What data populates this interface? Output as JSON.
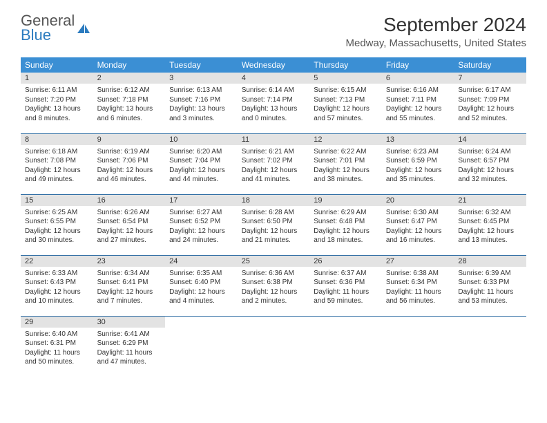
{
  "brand": {
    "name_part1": "General",
    "name_part2": "Blue",
    "icon_color": "#2b7bbf"
  },
  "title": "September 2024",
  "location": "Medway, Massachusetts, United States",
  "header_bg": "#3b8fd4",
  "daynum_bg": "#e3e3e3",
  "border_color": "#2e6da4",
  "weekdays": [
    "Sunday",
    "Monday",
    "Tuesday",
    "Wednesday",
    "Thursday",
    "Friday",
    "Saturday"
  ],
  "weeks": [
    [
      {
        "day": "1",
        "sunrise": "Sunrise: 6:11 AM",
        "sunset": "Sunset: 7:20 PM",
        "daylight": "Daylight: 13 hours and 8 minutes."
      },
      {
        "day": "2",
        "sunrise": "Sunrise: 6:12 AM",
        "sunset": "Sunset: 7:18 PM",
        "daylight": "Daylight: 13 hours and 6 minutes."
      },
      {
        "day": "3",
        "sunrise": "Sunrise: 6:13 AM",
        "sunset": "Sunset: 7:16 PM",
        "daylight": "Daylight: 13 hours and 3 minutes."
      },
      {
        "day": "4",
        "sunrise": "Sunrise: 6:14 AM",
        "sunset": "Sunset: 7:14 PM",
        "daylight": "Daylight: 13 hours and 0 minutes."
      },
      {
        "day": "5",
        "sunrise": "Sunrise: 6:15 AM",
        "sunset": "Sunset: 7:13 PM",
        "daylight": "Daylight: 12 hours and 57 minutes."
      },
      {
        "day": "6",
        "sunrise": "Sunrise: 6:16 AM",
        "sunset": "Sunset: 7:11 PM",
        "daylight": "Daylight: 12 hours and 55 minutes."
      },
      {
        "day": "7",
        "sunrise": "Sunrise: 6:17 AM",
        "sunset": "Sunset: 7:09 PM",
        "daylight": "Daylight: 12 hours and 52 minutes."
      }
    ],
    [
      {
        "day": "8",
        "sunrise": "Sunrise: 6:18 AM",
        "sunset": "Sunset: 7:08 PM",
        "daylight": "Daylight: 12 hours and 49 minutes."
      },
      {
        "day": "9",
        "sunrise": "Sunrise: 6:19 AM",
        "sunset": "Sunset: 7:06 PM",
        "daylight": "Daylight: 12 hours and 46 minutes."
      },
      {
        "day": "10",
        "sunrise": "Sunrise: 6:20 AM",
        "sunset": "Sunset: 7:04 PM",
        "daylight": "Daylight: 12 hours and 44 minutes."
      },
      {
        "day": "11",
        "sunrise": "Sunrise: 6:21 AM",
        "sunset": "Sunset: 7:02 PM",
        "daylight": "Daylight: 12 hours and 41 minutes."
      },
      {
        "day": "12",
        "sunrise": "Sunrise: 6:22 AM",
        "sunset": "Sunset: 7:01 PM",
        "daylight": "Daylight: 12 hours and 38 minutes."
      },
      {
        "day": "13",
        "sunrise": "Sunrise: 6:23 AM",
        "sunset": "Sunset: 6:59 PM",
        "daylight": "Daylight: 12 hours and 35 minutes."
      },
      {
        "day": "14",
        "sunrise": "Sunrise: 6:24 AM",
        "sunset": "Sunset: 6:57 PM",
        "daylight": "Daylight: 12 hours and 32 minutes."
      }
    ],
    [
      {
        "day": "15",
        "sunrise": "Sunrise: 6:25 AM",
        "sunset": "Sunset: 6:55 PM",
        "daylight": "Daylight: 12 hours and 30 minutes."
      },
      {
        "day": "16",
        "sunrise": "Sunrise: 6:26 AM",
        "sunset": "Sunset: 6:54 PM",
        "daylight": "Daylight: 12 hours and 27 minutes."
      },
      {
        "day": "17",
        "sunrise": "Sunrise: 6:27 AM",
        "sunset": "Sunset: 6:52 PM",
        "daylight": "Daylight: 12 hours and 24 minutes."
      },
      {
        "day": "18",
        "sunrise": "Sunrise: 6:28 AM",
        "sunset": "Sunset: 6:50 PM",
        "daylight": "Daylight: 12 hours and 21 minutes."
      },
      {
        "day": "19",
        "sunrise": "Sunrise: 6:29 AM",
        "sunset": "Sunset: 6:48 PM",
        "daylight": "Daylight: 12 hours and 18 minutes."
      },
      {
        "day": "20",
        "sunrise": "Sunrise: 6:30 AM",
        "sunset": "Sunset: 6:47 PM",
        "daylight": "Daylight: 12 hours and 16 minutes."
      },
      {
        "day": "21",
        "sunrise": "Sunrise: 6:32 AM",
        "sunset": "Sunset: 6:45 PM",
        "daylight": "Daylight: 12 hours and 13 minutes."
      }
    ],
    [
      {
        "day": "22",
        "sunrise": "Sunrise: 6:33 AM",
        "sunset": "Sunset: 6:43 PM",
        "daylight": "Daylight: 12 hours and 10 minutes."
      },
      {
        "day": "23",
        "sunrise": "Sunrise: 6:34 AM",
        "sunset": "Sunset: 6:41 PM",
        "daylight": "Daylight: 12 hours and 7 minutes."
      },
      {
        "day": "24",
        "sunrise": "Sunrise: 6:35 AM",
        "sunset": "Sunset: 6:40 PM",
        "daylight": "Daylight: 12 hours and 4 minutes."
      },
      {
        "day": "25",
        "sunrise": "Sunrise: 6:36 AM",
        "sunset": "Sunset: 6:38 PM",
        "daylight": "Daylight: 12 hours and 2 minutes."
      },
      {
        "day": "26",
        "sunrise": "Sunrise: 6:37 AM",
        "sunset": "Sunset: 6:36 PM",
        "daylight": "Daylight: 11 hours and 59 minutes."
      },
      {
        "day": "27",
        "sunrise": "Sunrise: 6:38 AM",
        "sunset": "Sunset: 6:34 PM",
        "daylight": "Daylight: 11 hours and 56 minutes."
      },
      {
        "day": "28",
        "sunrise": "Sunrise: 6:39 AM",
        "sunset": "Sunset: 6:33 PM",
        "daylight": "Daylight: 11 hours and 53 minutes."
      }
    ],
    [
      {
        "day": "29",
        "sunrise": "Sunrise: 6:40 AM",
        "sunset": "Sunset: 6:31 PM",
        "daylight": "Daylight: 11 hours and 50 minutes."
      },
      {
        "day": "30",
        "sunrise": "Sunrise: 6:41 AM",
        "sunset": "Sunset: 6:29 PM",
        "daylight": "Daylight: 11 hours and 47 minutes."
      },
      null,
      null,
      null,
      null,
      null
    ]
  ]
}
